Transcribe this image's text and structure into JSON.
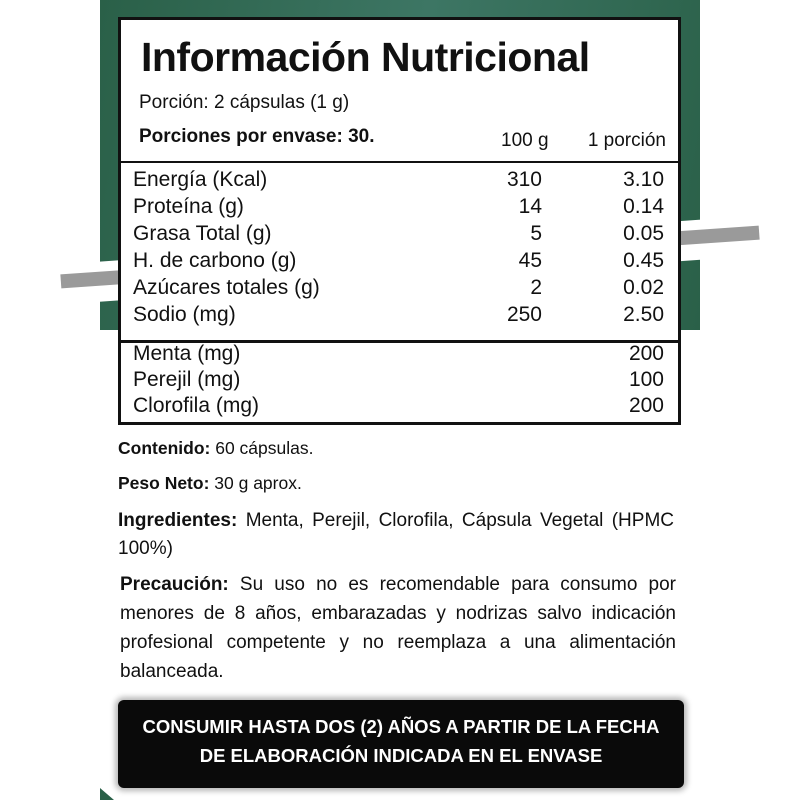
{
  "title": "Información Nutricional",
  "portion": "Porción: 2 cápsulas (1 g)",
  "servings": "Porciones por envase: 30.",
  "columns": [
    "100 g",
    "1 porción"
  ],
  "nutrients": [
    {
      "label": "Energía (Kcal)",
      "per100": "310",
      "perPortion": "3.10"
    },
    {
      "label": "Proteína (g)",
      "per100": "14",
      "perPortion": "0.14"
    },
    {
      "label": "Grasa Total (g)",
      "per100": "5",
      "perPortion": "0.05"
    },
    {
      "label": "H. de carbono (g)",
      "per100": "45",
      "perPortion": "0.45"
    },
    {
      "label": "Azúcares totales (g)",
      "per100": "2",
      "perPortion": "0.02"
    },
    {
      "label": "Sodio (mg)",
      "per100": "250",
      "perPortion": "2.50"
    }
  ],
  "actives": [
    {
      "label": "Menta (mg)",
      "perPortion": "200"
    },
    {
      "label": "Perejil (mg)",
      "perPortion": "100"
    },
    {
      "label": "Clorofila (mg)",
      "perPortion": "200"
    }
  ],
  "content": {
    "label": "Contenido:",
    "value": "60 cápsulas."
  },
  "net_weight": {
    "label": "Peso Neto:",
    "value": "30 g aprox."
  },
  "ingredients": {
    "label": "Ingredientes:",
    "value": "Menta, Perejil, Clorofila, Cápsula Vegetal (HPMC 100%)"
  },
  "precaution": {
    "label": "Precaución:",
    "value": "Su uso no es recomendable para consumo por menores de 8 años, embarazadas y nodrizas salvo indicación profesional competente y no reemplaza a una alimentación balanceada."
  },
  "banner": "CONSUMIR HASTA DOS (2) AÑOS A PARTIR DE LA FECHA DE ELABORACIÓN INDICADA EN EL ENVASE",
  "colors": {
    "brand_green": "#2a6048",
    "banner_bg": "#0a0a0a"
  }
}
